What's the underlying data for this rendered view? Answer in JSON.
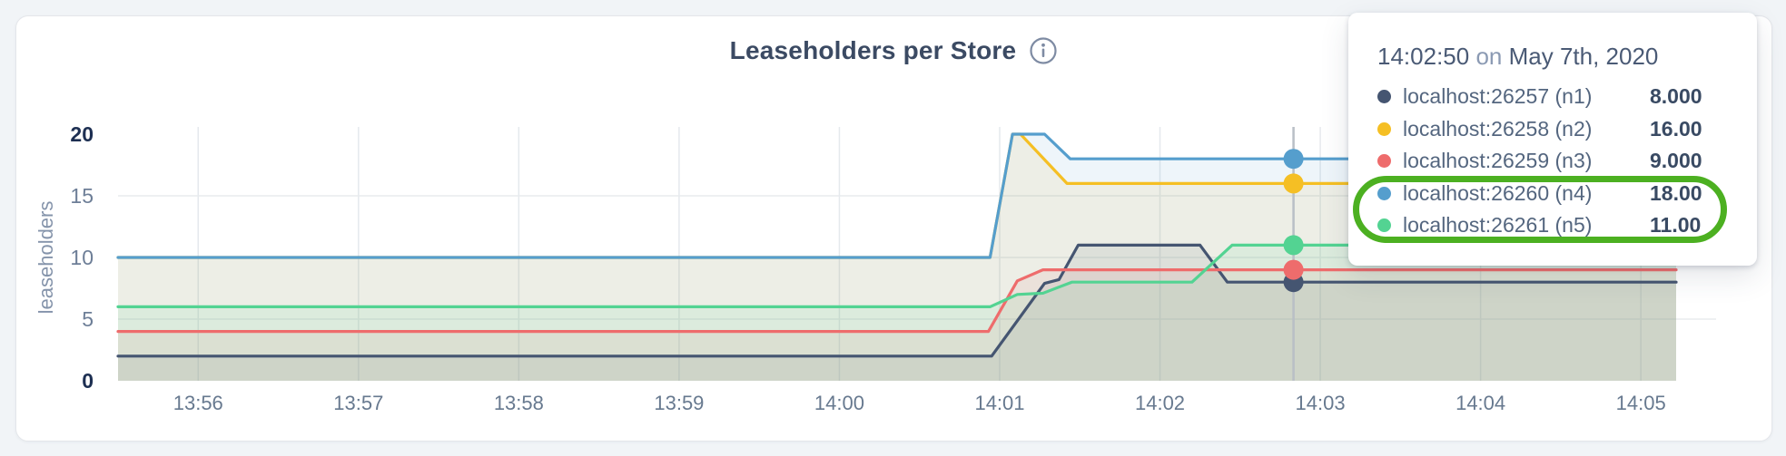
{
  "header": {
    "title": "Leaseholders per Store",
    "info_icon": "info"
  },
  "tooltip": {
    "time": "14:02:50",
    "conjunction": "on",
    "date": "May 7th, 2020",
    "rows": [
      {
        "label": "localhost:26257 (n1)",
        "value": "8.000",
        "color": "#455571"
      },
      {
        "label": "localhost:26258 (n2)",
        "value": "16.00",
        "color": "#f5bf24"
      },
      {
        "label": "localhost:26259 (n3)",
        "value": "9.000",
        "color": "#ee6c6c"
      },
      {
        "label": "localhost:26260 (n4)",
        "value": "18.00",
        "color": "#559ecd"
      },
      {
        "label": "localhost:26261 (n5)",
        "value": "11.00",
        "color": "#53d392"
      }
    ],
    "annotation": {
      "color": "#4cb021",
      "highlighted_labels": [
        "localhost:26260 (n4)",
        "localhost:26261 (n5)"
      ]
    }
  },
  "chart_data": {
    "type": "area",
    "title": "Leaseholders per Store",
    "xlabel": "",
    "ylabel": "leaseholders",
    "x_axis": {
      "range_minutes": [
        -0.5,
        9.22
      ],
      "ticks": [
        {
          "label": "13:56",
          "offset": 0
        },
        {
          "label": "13:57",
          "offset": 1
        },
        {
          "label": "13:58",
          "offset": 2
        },
        {
          "label": "13:59",
          "offset": 3
        },
        {
          "label": "14:00",
          "offset": 4
        },
        {
          "label": "14:01",
          "offset": 5
        },
        {
          "label": "14:02",
          "offset": 6
        },
        {
          "label": "14:03",
          "offset": 7
        },
        {
          "label": "14:04",
          "offset": 8
        },
        {
          "label": "14:05",
          "offset": 9
        }
      ]
    },
    "y_axis": {
      "range": [
        0,
        20
      ],
      "ticks": [
        0,
        5,
        10,
        15,
        20
      ],
      "grid_ticks": [
        5,
        10,
        15
      ],
      "emphasized_ticks": [
        0,
        20
      ]
    },
    "grid": true,
    "legend_position": "tooltip-top-right",
    "cursor": {
      "time_label": "14:02:50",
      "offset_minutes": 6.833
    },
    "style": {
      "vgrid": "#e5e9ed",
      "hgrid": "#e8ebee",
      "cursor_line": "#b9bfc6",
      "fill_opacity": 0.1
    },
    "series": [
      {
        "id": "n1",
        "name": "localhost:26257 (n1)",
        "color": "#455571",
        "cursor_value": 8,
        "points": [
          [
            -0.5,
            2
          ],
          [
            4.95,
            2
          ],
          [
            5.28,
            7.9
          ],
          [
            5.37,
            8.2
          ],
          [
            5.49,
            11
          ],
          [
            6.25,
            11
          ],
          [
            6.42,
            8
          ],
          [
            9.22,
            8
          ]
        ]
      },
      {
        "id": "n2",
        "name": "localhost:26258 (n2)",
        "color": "#f5bf24",
        "cursor_value": 16,
        "points": [
          [
            -0.5,
            10
          ],
          [
            4.94,
            10
          ],
          [
            5.08,
            20
          ],
          [
            5.13,
            20
          ],
          [
            5.42,
            16
          ],
          [
            9.22,
            16
          ]
        ]
      },
      {
        "id": "n3",
        "name": "localhost:26259 (n3)",
        "color": "#ee6c6c",
        "cursor_value": 9,
        "points": [
          [
            -0.5,
            4
          ],
          [
            4.93,
            4
          ],
          [
            5.11,
            8.1
          ],
          [
            5.27,
            9
          ],
          [
            9.22,
            9
          ]
        ]
      },
      {
        "id": "n4",
        "name": "localhost:26260 (n4)",
        "color": "#559ecd",
        "cursor_value": 18,
        "points": [
          [
            -0.5,
            10
          ],
          [
            4.94,
            10
          ],
          [
            5.08,
            20
          ],
          [
            5.28,
            20
          ],
          [
            5.44,
            18
          ],
          [
            9.22,
            18
          ]
        ]
      },
      {
        "id": "n5",
        "name": "localhost:26261 (n5)",
        "color": "#53d392",
        "cursor_value": 11,
        "points": [
          [
            -0.5,
            6
          ],
          [
            4.94,
            6
          ],
          [
            5.11,
            7
          ],
          [
            5.27,
            7.1
          ],
          [
            5.45,
            8
          ],
          [
            6.2,
            8
          ],
          [
            6.45,
            11
          ],
          [
            9.22,
            11
          ]
        ]
      }
    ]
  }
}
